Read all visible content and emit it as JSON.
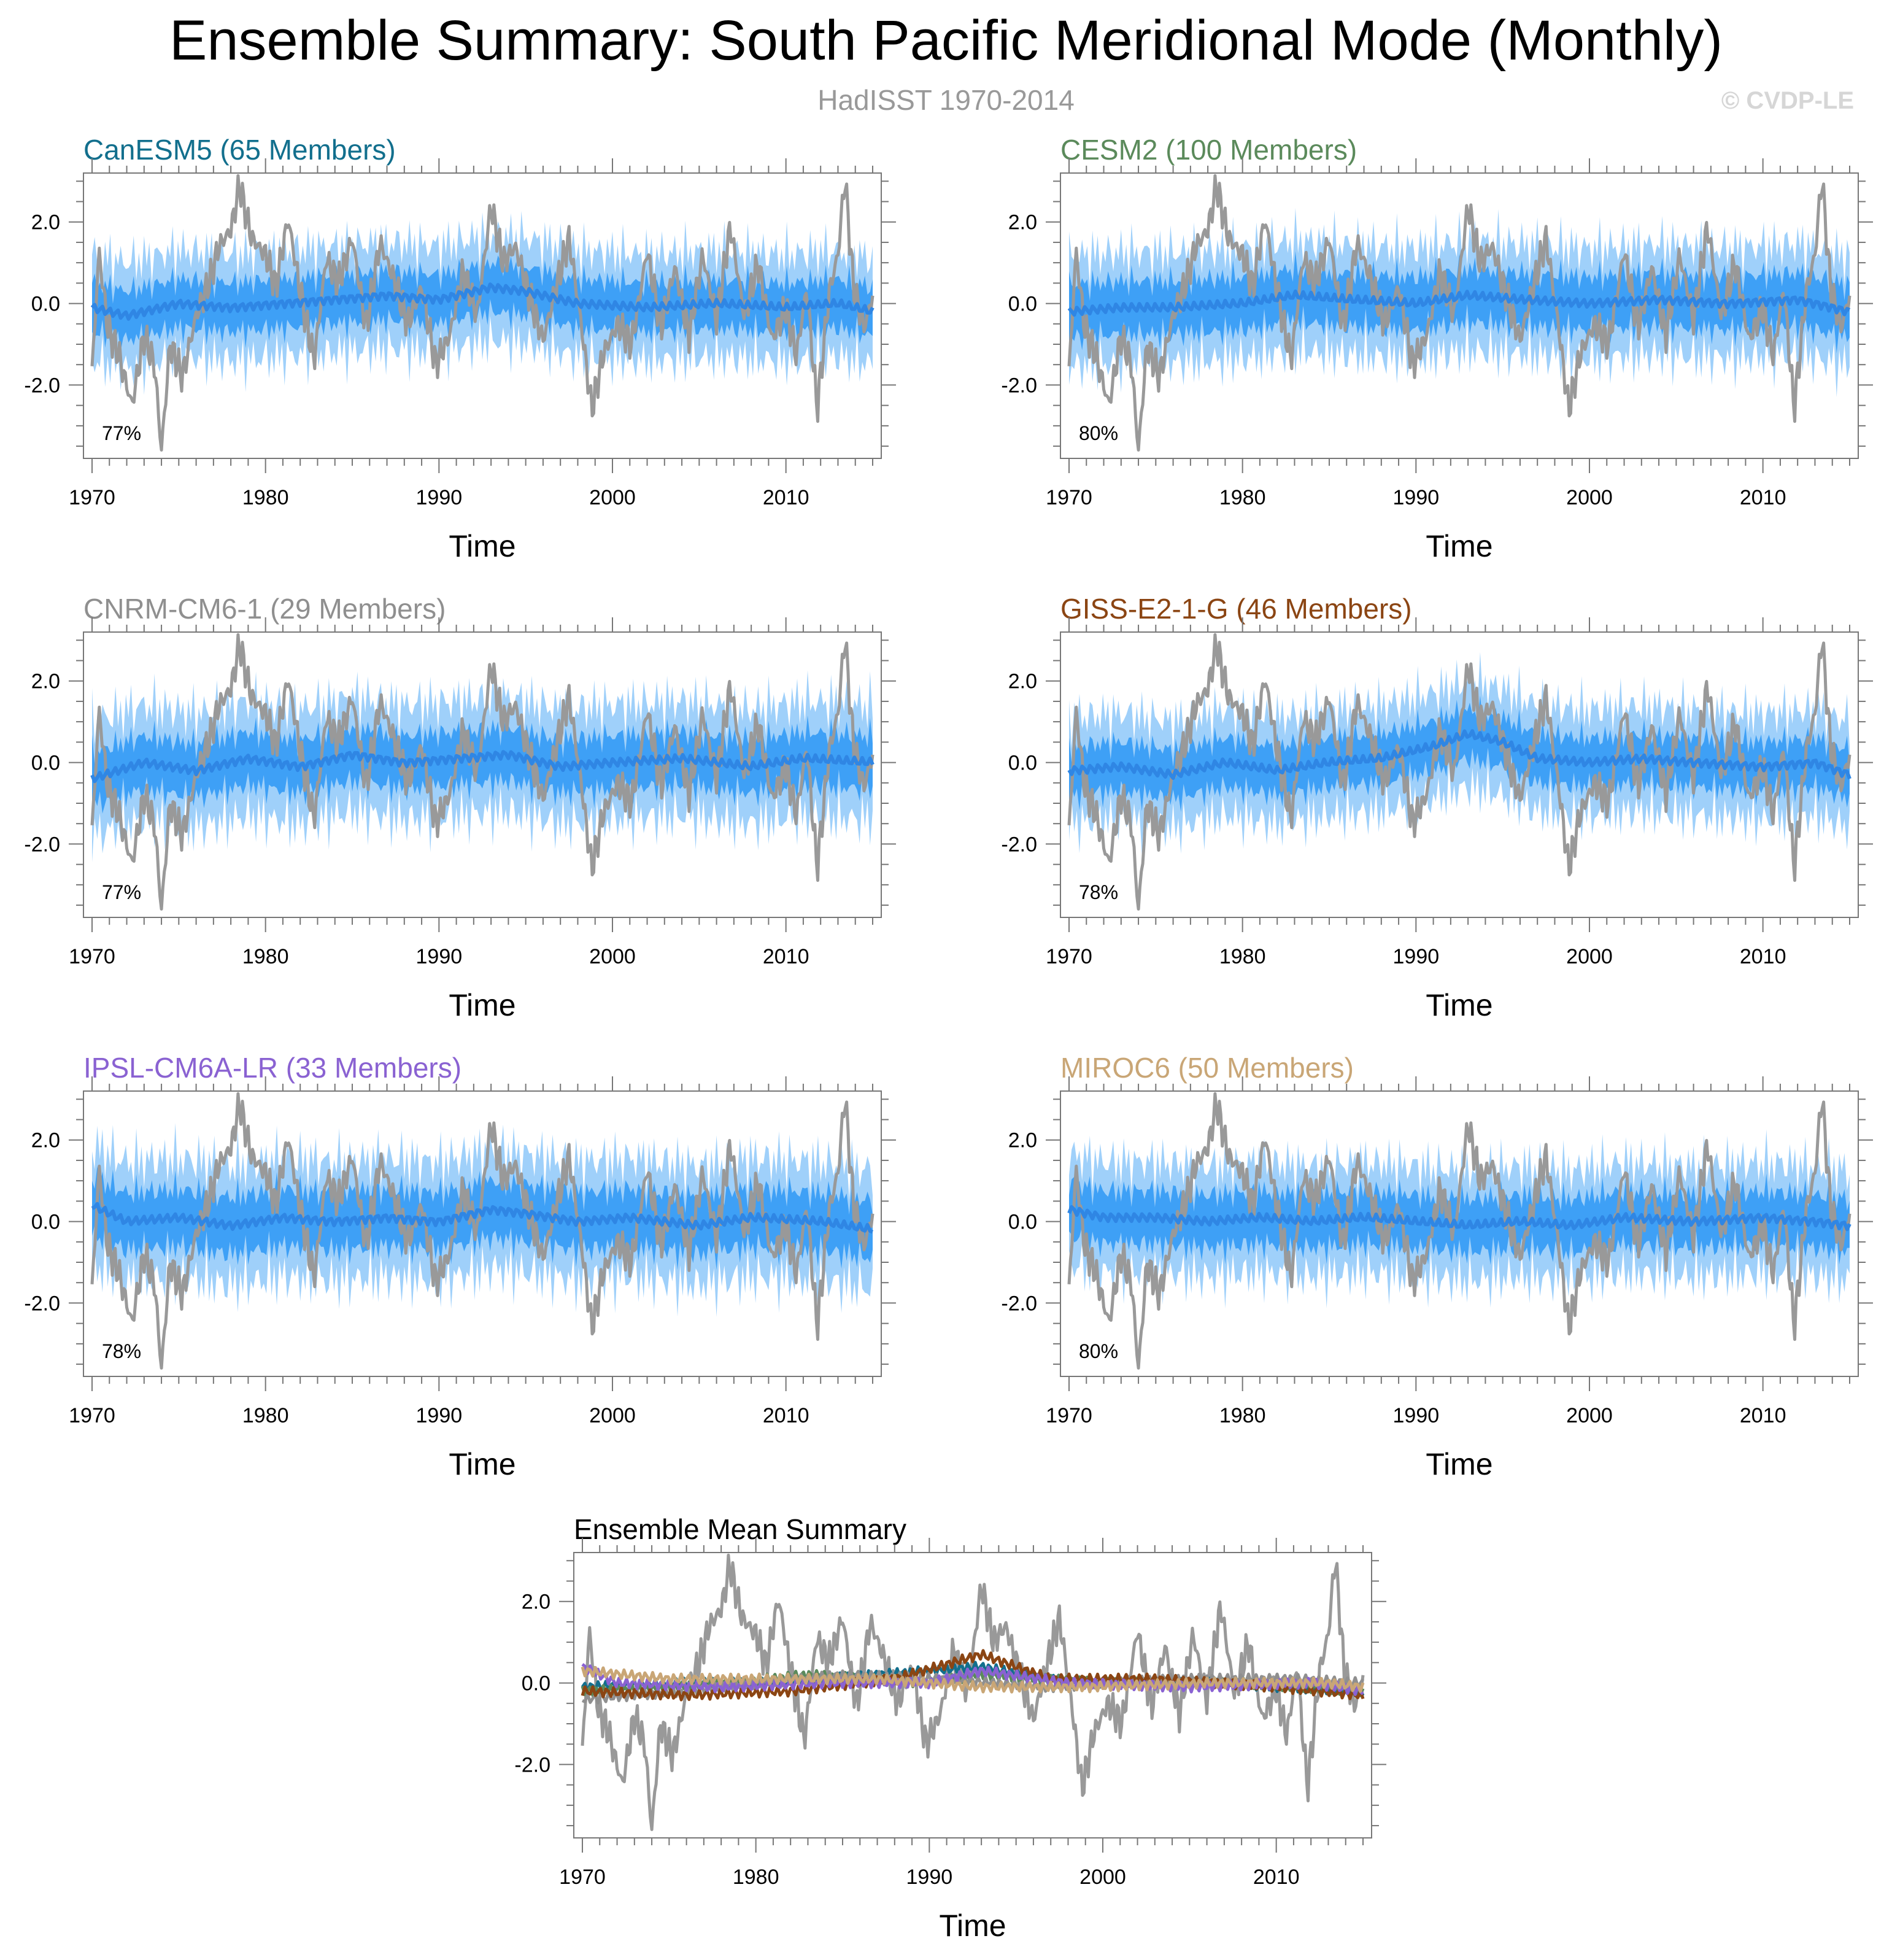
{
  "figure": {
    "title": "Ensemble Summary: South Pacific Meridional Mode (Monthly)",
    "subtitle": "HadISST 1970-2014",
    "credit": "© CVDP-LE"
  },
  "colors": {
    "observed": "#999999",
    "band_outer": "#9fd0fa",
    "band_inner": "#3ea0f6",
    "ensemble_mean": "#2f86e4"
  },
  "chart_data": [
    {
      "id": "canesm5",
      "type": "area",
      "title": "CanESM5 (65 Members)",
      "title_color": "#126f8d",
      "pct_label": "77%",
      "xlabel": "Time",
      "xlim": [
        1970,
        2015
      ],
      "ylim": [
        -3.8,
        3.2
      ],
      "xticks": [
        "1970",
        "1980",
        "1990",
        "2000",
        "2010"
      ],
      "yticks": [
        "2.0",
        "0.0",
        "-2.0"
      ],
      "band_half_width": [
        0.6,
        1.3
      ],
      "mean_curve": [
        [
          1970,
          -0.1
        ],
        [
          1972,
          -0.3
        ],
        [
          1975,
          0.0
        ],
        [
          1978,
          -0.1
        ],
        [
          1981,
          0.0
        ],
        [
          1984,
          0.1
        ],
        [
          1987,
          0.2
        ],
        [
          1990,
          0.1
        ],
        [
          1993,
          0.4
        ],
        [
          1995,
          0.3
        ],
        [
          1998,
          0.0
        ],
        [
          2002,
          -0.1
        ],
        [
          2006,
          0.0
        ],
        [
          2010,
          -0.1
        ],
        [
          2013,
          0.0
        ],
        [
          2015,
          -0.2
        ]
      ]
    },
    {
      "id": "cesm2",
      "type": "area",
      "title": "CESM2 (100 Members)",
      "title_color": "#5b8a5b",
      "pct_label": "80%",
      "xlabel": "Time",
      "xlim": [
        1970,
        2015
      ],
      "ylim": [
        -3.8,
        3.2
      ],
      "xticks": [
        "1970",
        "1980",
        "1990",
        "2000",
        "2010"
      ],
      "yticks": [
        "2.0",
        "0.0",
        "-2.0"
      ],
      "band_half_width": [
        0.65,
        1.35
      ],
      "mean_curve": [
        [
          1970,
          -0.2
        ],
        [
          1973,
          -0.1
        ],
        [
          1976,
          -0.1
        ],
        [
          1980,
          0.0
        ],
        [
          1983,
          0.2
        ],
        [
          1986,
          0.1
        ],
        [
          1990,
          0.0
        ],
        [
          1993,
          0.2
        ],
        [
          1996,
          0.1
        ],
        [
          2000,
          0.0
        ],
        [
          2004,
          0.1
        ],
        [
          2008,
          0.0
        ],
        [
          2012,
          0.1
        ],
        [
          2015,
          -0.2
        ]
      ]
    },
    {
      "id": "cnrm",
      "type": "area",
      "title": "CNRM-CM6-1 (29 Members)",
      "title_color": "#8f8f8f",
      "pct_label": "77%",
      "xlabel": "Time",
      "xlim": [
        1970,
        2015
      ],
      "ylim": [
        -3.8,
        3.2
      ],
      "xticks": [
        "1970",
        "1980",
        "1990",
        "2000",
        "2010"
      ],
      "yticks": [
        "2.0",
        "0.0",
        "-2.0"
      ],
      "band_half_width": [
        0.65,
        1.4
      ],
      "mean_curve": [
        [
          1970,
          -0.4
        ],
        [
          1973,
          0.0
        ],
        [
          1976,
          -0.2
        ],
        [
          1979,
          0.1
        ],
        [
          1982,
          -0.1
        ],
        [
          1985,
          0.2
        ],
        [
          1988,
          0.0
        ],
        [
          1991,
          0.1
        ],
        [
          1994,
          0.2
        ],
        [
          1997,
          -0.1
        ],
        [
          2000,
          0.0
        ],
        [
          2004,
          0.1
        ],
        [
          2008,
          -0.1
        ],
        [
          2011,
          0.1
        ],
        [
          2015,
          0.0
        ]
      ]
    },
    {
      "id": "giss",
      "type": "area",
      "title": "GISS-E2-1-G (46 Members)",
      "title_color": "#8b4513",
      "pct_label": "78%",
      "xlabel": "Time",
      "xlim": [
        1970,
        2015
      ],
      "ylim": [
        -3.8,
        3.2
      ],
      "xticks": [
        "1970",
        "1980",
        "1990",
        "2000",
        "2010"
      ],
      "yticks": [
        "2.0",
        "0.0",
        "-2.0"
      ],
      "band_half_width": [
        0.6,
        1.3
      ],
      "mean_curve": [
        [
          1970,
          -0.2
        ],
        [
          1973,
          -0.1
        ],
        [
          1976,
          -0.3
        ],
        [
          1979,
          0.0
        ],
        [
          1982,
          -0.2
        ],
        [
          1985,
          0.0
        ],
        [
          1988,
          0.1
        ],
        [
          1991,
          0.4
        ],
        [
          1993,
          0.7
        ],
        [
          1995,
          0.5
        ],
        [
          1997,
          0.1
        ],
        [
          2000,
          0.0
        ],
        [
          2003,
          0.1
        ],
        [
          2006,
          0.0
        ],
        [
          2010,
          -0.1
        ],
        [
          2013,
          0.0
        ],
        [
          2015,
          -0.3
        ]
      ]
    },
    {
      "id": "ipsl",
      "type": "area",
      "title": "IPSL-CM6A-LR (33 Members)",
      "title_color": "#8a62d2",
      "pct_label": "78%",
      "xlabel": "Time",
      "xlim": [
        1970,
        2015
      ],
      "ylim": [
        -3.8,
        3.2
      ],
      "xticks": [
        "1970",
        "1980",
        "1990",
        "2000",
        "2010"
      ],
      "yticks": [
        "2.0",
        "0.0",
        "-2.0"
      ],
      "band_half_width": [
        0.7,
        1.45
      ],
      "mean_curve": [
        [
          1970,
          0.4
        ],
        [
          1972,
          0.0
        ],
        [
          1975,
          0.1
        ],
        [
          1978,
          -0.1
        ],
        [
          1981,
          0.1
        ],
        [
          1984,
          0.0
        ],
        [
          1987,
          0.1
        ],
        [
          1990,
          0.0
        ],
        [
          1993,
          0.3
        ],
        [
          1995,
          0.2
        ],
        [
          1998,
          0.0
        ],
        [
          2001,
          0.1
        ],
        [
          2005,
          -0.1
        ],
        [
          2008,
          0.1
        ],
        [
          2012,
          0.0
        ],
        [
          2015,
          -0.2
        ]
      ]
    },
    {
      "id": "miroc6",
      "type": "area",
      "title": "MIROC6 (50 Members)",
      "title_color": "#c9a676",
      "pct_label": "80%",
      "xlabel": "Time",
      "xlim": [
        1970,
        2015
      ],
      "ylim": [
        -3.8,
        3.2
      ],
      "xticks": [
        "1970",
        "1980",
        "1990",
        "2000",
        "2010"
      ],
      "yticks": [
        "2.0",
        "0.0",
        "-2.0"
      ],
      "band_half_width": [
        0.65,
        1.35
      ],
      "mean_curve": [
        [
          1970,
          0.3
        ],
        [
          1972,
          0.1
        ],
        [
          1975,
          0.1
        ],
        [
          1978,
          0.0
        ],
        [
          1981,
          0.1
        ],
        [
          1984,
          0.0
        ],
        [
          1987,
          0.1
        ],
        [
          1990,
          0.0
        ],
        [
          1993,
          -0.1
        ],
        [
          1996,
          0.0
        ],
        [
          1999,
          -0.1
        ],
        [
          2002,
          0.1
        ],
        [
          2006,
          0.0
        ],
        [
          2010,
          0.1
        ],
        [
          2013,
          0.0
        ],
        [
          2015,
          -0.1
        ]
      ]
    },
    {
      "id": "summary",
      "type": "line",
      "title": "Ensemble Mean Summary",
      "title_color": "#000000",
      "pct_label": "",
      "xlabel": "Time",
      "xlim": [
        1970,
        2015
      ],
      "ylim": [
        -3.8,
        3.2
      ],
      "xticks": [
        "1970",
        "1980",
        "1990",
        "2000",
        "2010"
      ],
      "yticks": [
        "2.0",
        "0.0",
        "-2.0"
      ],
      "series": [
        {
          "color": "#126f8d",
          "mean_curve": [
            [
              1970,
              -0.1
            ],
            [
              1975,
              0.0
            ],
            [
              1981,
              0.0
            ],
            [
              1987,
              0.2
            ],
            [
              1993,
              0.4
            ],
            [
              1998,
              0.0
            ],
            [
              2006,
              0.0
            ],
            [
              2015,
              -0.2
            ]
          ]
        },
        {
          "color": "#5b8a5b",
          "mean_curve": [
            [
              1970,
              -0.2
            ],
            [
              1976,
              -0.1
            ],
            [
              1983,
              0.2
            ],
            [
              1990,
              0.0
            ],
            [
              1993,
              0.2
            ],
            [
              2000,
              0.0
            ],
            [
              2008,
              0.0
            ],
            [
              2015,
              -0.2
            ]
          ]
        },
        {
          "color": "#8f8f8f",
          "mean_curve": [
            [
              1970,
              -0.4
            ],
            [
              1976,
              -0.2
            ],
            [
              1985,
              0.2
            ],
            [
              1991,
              0.1
            ],
            [
              1997,
              -0.1
            ],
            [
              2004,
              0.1
            ],
            [
              2011,
              0.1
            ],
            [
              2015,
              0.0
            ]
          ]
        },
        {
          "color": "#8b4513",
          "mean_curve": [
            [
              1970,
              -0.2
            ],
            [
              1976,
              -0.3
            ],
            [
              1982,
              -0.2
            ],
            [
              1988,
              0.1
            ],
            [
              1993,
              0.7
            ],
            [
              1997,
              0.1
            ],
            [
              2003,
              0.1
            ],
            [
              2010,
              -0.1
            ],
            [
              2015,
              -0.3
            ]
          ]
        },
        {
          "color": "#8a62d2",
          "mean_curve": [
            [
              1970,
              0.4
            ],
            [
              1972,
              0.0
            ],
            [
              1978,
              -0.1
            ],
            [
              1984,
              0.0
            ],
            [
              1990,
              0.0
            ],
            [
              1993,
              0.3
            ],
            [
              1998,
              0.0
            ],
            [
              2005,
              -0.1
            ],
            [
              2012,
              0.0
            ],
            [
              2015,
              -0.2
            ]
          ]
        },
        {
          "color": "#c9a676",
          "mean_curve": [
            [
              1970,
              0.3
            ],
            [
              1975,
              0.1
            ],
            [
              1981,
              0.1
            ],
            [
              1987,
              0.1
            ],
            [
              1993,
              -0.1
            ],
            [
              1999,
              -0.1
            ],
            [
              2006,
              0.0
            ],
            [
              2013,
              0.0
            ],
            [
              2015,
              -0.1
            ]
          ]
        }
      ]
    }
  ],
  "observed_series": {
    "label": "HadISST",
    "anchors": [
      [
        1970,
        -1.7
      ],
      [
        1970.4,
        1.3
      ],
      [
        1970.9,
        -0.6
      ],
      [
        1971.5,
        -1.2
      ],
      [
        1972.3,
        -2.5
      ],
      [
        1973.0,
        -0.8
      ],
      [
        1973.6,
        -1.5
      ],
      [
        1974.0,
        -3.6
      ],
      [
        1974.5,
        -1.0
      ],
      [
        1975.2,
        -1.8
      ],
      [
        1976.0,
        -0.3
      ],
      [
        1976.8,
        0.6
      ],
      [
        1977.3,
        1.4
      ],
      [
        1978.0,
        1.8
      ],
      [
        1978.5,
        2.9
      ],
      [
        1979.2,
        1.6
      ],
      [
        1980.0,
        1.2
      ],
      [
        1980.6,
        0.4
      ],
      [
        1981.3,
        2.1
      ],
      [
        1982.0,
        0.3
      ],
      [
        1982.8,
        -1.4
      ],
      [
        1983.5,
        1.1
      ],
      [
        1984.2,
        0.5
      ],
      [
        1985.0,
        1.6
      ],
      [
        1985.8,
        -0.6
      ],
      [
        1986.6,
        1.5
      ],
      [
        1987.4,
        0.6
      ],
      [
        1988.2,
        -0.5
      ],
      [
        1989.0,
        0.4
      ],
      [
        1989.8,
        -1.5
      ],
      [
        1990.6,
        -0.8
      ],
      [
        1991.4,
        0.8
      ],
      [
        1992.2,
        -0.3
      ],
      [
        1993.0,
        2.4
      ],
      [
        1993.7,
        1.0
      ],
      [
        1994.4,
        1.4
      ],
      [
        1995.2,
        0.2
      ],
      [
        1996.0,
        -0.9
      ],
      [
        1996.8,
        0.5
      ],
      [
        1997.5,
        1.6
      ],
      [
        1998.2,
        -0.5
      ],
      [
        1998.8,
        -2.6
      ],
      [
        1999.5,
        -1.2
      ],
      [
        2000.3,
        -0.5
      ],
      [
        2001.1,
        -1.0
      ],
      [
        2002.0,
        1.3
      ],
      [
        2002.8,
        -0.6
      ],
      [
        2003.6,
        0.9
      ],
      [
        2004.4,
        -0.8
      ],
      [
        2005.2,
        1.2
      ],
      [
        2006.0,
        -0.4
      ],
      [
        2006.8,
        1.9
      ],
      [
        2007.6,
        -0.3
      ],
      [
        2008.4,
        1.0
      ],
      [
        2009.2,
        -0.9
      ],
      [
        2010.0,
        -0.1
      ],
      [
        2010.6,
        -1.3
      ],
      [
        2011.2,
        0.4
      ],
      [
        2011.8,
        -2.6
      ],
      [
        2012.5,
        0.3
      ],
      [
        2013.0,
        1.2
      ],
      [
        2013.4,
        3.1
      ],
      [
        2013.9,
        0.4
      ],
      [
        2014.5,
        -0.6
      ],
      [
        2015.0,
        0.2
      ]
    ]
  }
}
